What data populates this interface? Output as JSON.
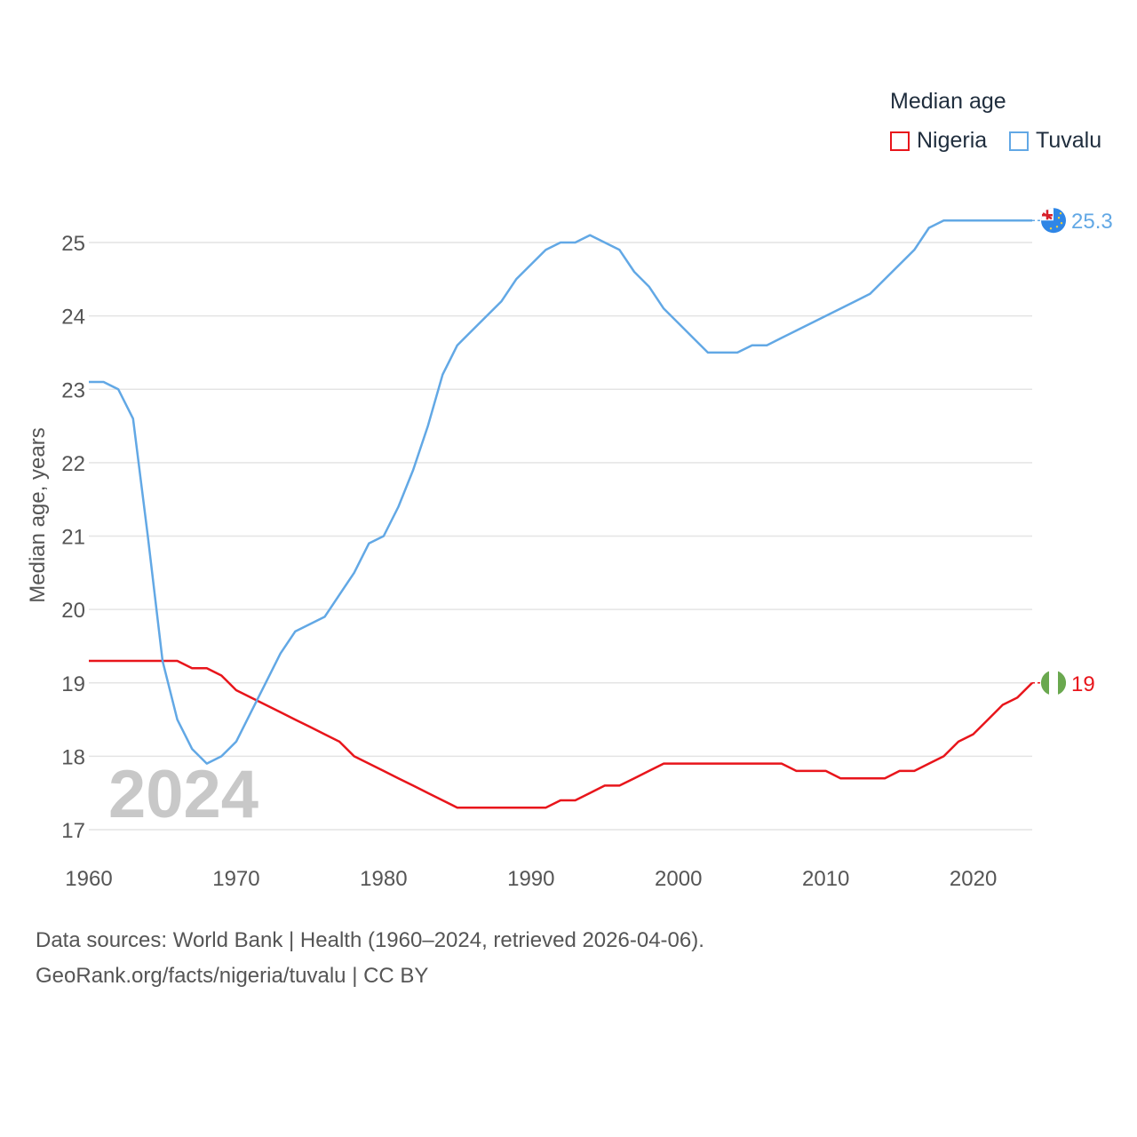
{
  "legend": {
    "title": "Median age",
    "items": [
      {
        "label": "Nigeria",
        "color": "#e8151b"
      },
      {
        "label": "Tuvalu",
        "color": "#62a8e5"
      }
    ]
  },
  "footer": {
    "line1": "Data sources: World Bank | Health (1960–2024, retrieved 2026-04-06).",
    "line2": "GeoRank.org/facts/nigeria/tuvalu | CC BY"
  },
  "chart_data": {
    "type": "line",
    "title": "Median age",
    "year_label": "2024",
    "xlabel": "",
    "ylabel": "Median age, years",
    "xlim": [
      1960,
      2024
    ],
    "ylim": [
      17,
      25.4
    ],
    "xticks": [
      1960,
      1970,
      1980,
      1990,
      2000,
      2010,
      2020
    ],
    "yticks": [
      17,
      18,
      19,
      20,
      21,
      22,
      23,
      24,
      25
    ],
    "grid": true,
    "x": [
      1960,
      1961,
      1962,
      1963,
      1964,
      1965,
      1966,
      1967,
      1968,
      1969,
      1970,
      1971,
      1972,
      1973,
      1974,
      1975,
      1976,
      1977,
      1978,
      1979,
      1980,
      1981,
      1982,
      1983,
      1984,
      1985,
      1986,
      1987,
      1988,
      1989,
      1990,
      1991,
      1992,
      1993,
      1994,
      1995,
      1996,
      1997,
      1998,
      1999,
      2000,
      2001,
      2002,
      2003,
      2004,
      2005,
      2006,
      2007,
      2008,
      2009,
      2010,
      2011,
      2012,
      2013,
      2014,
      2015,
      2016,
      2017,
      2018,
      2019,
      2020,
      2021,
      2022,
      2023,
      2024
    ],
    "series": [
      {
        "name": "Nigeria",
        "color": "#e8151b",
        "end_label": "19",
        "values": [
          19.3,
          19.3,
          19.3,
          19.3,
          19.3,
          19.3,
          19.3,
          19.2,
          19.2,
          19.1,
          18.9,
          18.8,
          18.7,
          18.6,
          18.5,
          18.4,
          18.3,
          18.2,
          18.0,
          17.9,
          17.8,
          17.7,
          17.6,
          17.5,
          17.4,
          17.3,
          17.3,
          17.3,
          17.3,
          17.3,
          17.3,
          17.3,
          17.4,
          17.4,
          17.5,
          17.6,
          17.6,
          17.7,
          17.8,
          17.9,
          17.9,
          17.9,
          17.9,
          17.9,
          17.9,
          17.9,
          17.9,
          17.9,
          17.8,
          17.8,
          17.8,
          17.7,
          17.7,
          17.7,
          17.7,
          17.8,
          17.8,
          17.9,
          18.0,
          18.2,
          18.3,
          18.5,
          18.7,
          18.8,
          19.0
        ]
      },
      {
        "name": "Tuvalu",
        "color": "#62a8e5",
        "end_label": "25.3",
        "values": [
          23.1,
          23.1,
          23.0,
          22.6,
          21.0,
          19.3,
          18.5,
          18.1,
          17.9,
          18.0,
          18.2,
          18.6,
          19.0,
          19.4,
          19.7,
          19.8,
          19.9,
          20.2,
          20.5,
          20.9,
          21.0,
          21.4,
          21.9,
          22.5,
          23.2,
          23.6,
          23.8,
          24.0,
          24.2,
          24.5,
          24.7,
          24.9,
          25.0,
          25.0,
          25.1,
          25.0,
          24.9,
          24.6,
          24.4,
          24.1,
          23.9,
          23.7,
          23.5,
          23.5,
          23.5,
          23.6,
          23.6,
          23.7,
          23.8,
          23.9,
          24.0,
          24.1,
          24.2,
          24.3,
          24.5,
          24.7,
          24.9,
          25.2,
          25.3,
          25.3,
          25.3,
          25.3,
          25.3,
          25.3,
          25.3
        ]
      }
    ]
  }
}
